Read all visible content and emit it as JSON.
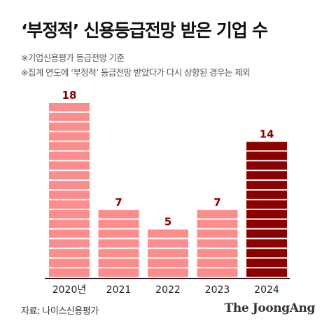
{
  "title": "‘부정적’ 신용등급전망 받은 기업 수",
  "notes": [
    "※기업신용평가 등급전망 기준",
    "※집계 연도에 ‘부정적’ 등급전망 받았다가 다시 상향된 경우는 제외"
  ],
  "source": "자료: 나이스신용평가",
  "logo": "The JoongAng",
  "colors": {
    "bar": "#fb8d8d",
    "highlight": "#8b0000",
    "label": "#8b0000",
    "stripe": "#ffffff",
    "baseline": "#222222"
  },
  "chart_data": {
    "type": "bar",
    "title": "‘부정적’ 신용등급전망 받은 기업 수",
    "categories": [
      "2020년",
      "2021",
      "2022",
      "2023",
      "2024"
    ],
    "values": [
      18,
      7,
      5,
      7,
      14
    ],
    "highlight_index": 4,
    "xlabel": "",
    "ylabel": "",
    "ylim": [
      0,
      18
    ],
    "grid": false,
    "legend": "none"
  }
}
